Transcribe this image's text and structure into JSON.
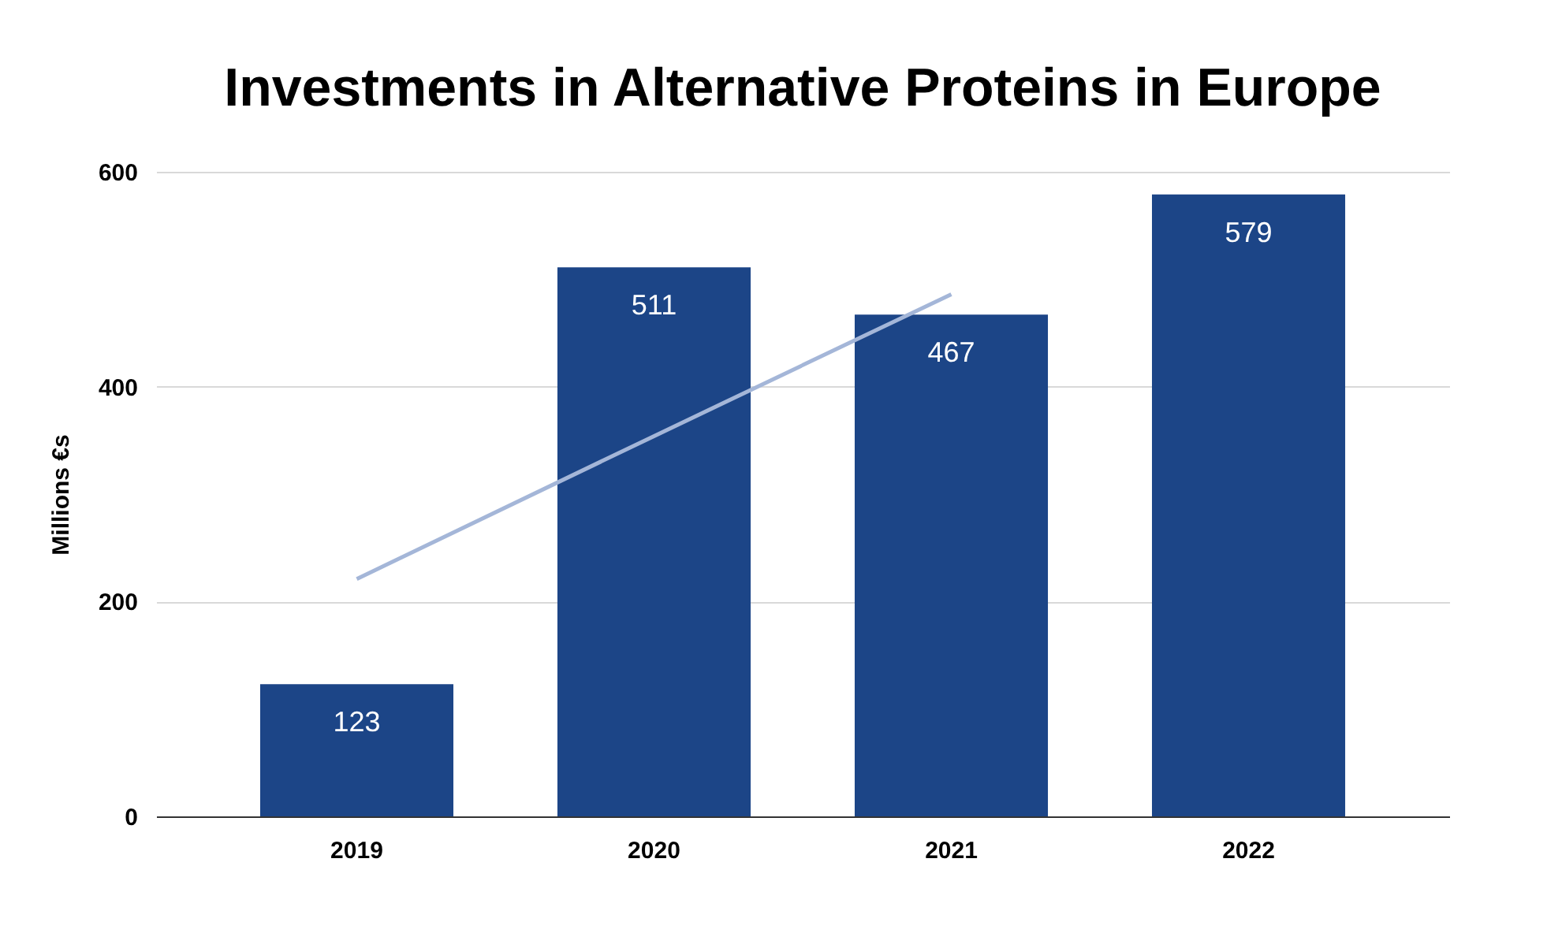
{
  "chart_data": {
    "type": "bar",
    "title": "Investments in Alternative Proteins in Europe",
    "ylabel": "Millions €s",
    "categories": [
      "2019",
      "2020",
      "2021",
      "2022"
    ],
    "series": [
      {
        "color": "#1c4587",
        "values": [
          123,
          511,
          467,
          579
        ],
        "value_labels": [
          "123",
          "511",
          "467",
          "579"
        ]
      },
      {
        "type": "line",
        "color": "#a4b6d8",
        "values": [
          221,
          354,
          486,
          null
        ]
      }
    ],
    "ylim": [
      0,
      600
    ],
    "yticks": [
      0,
      200,
      400,
      600
    ],
    "grid": "y"
  }
}
